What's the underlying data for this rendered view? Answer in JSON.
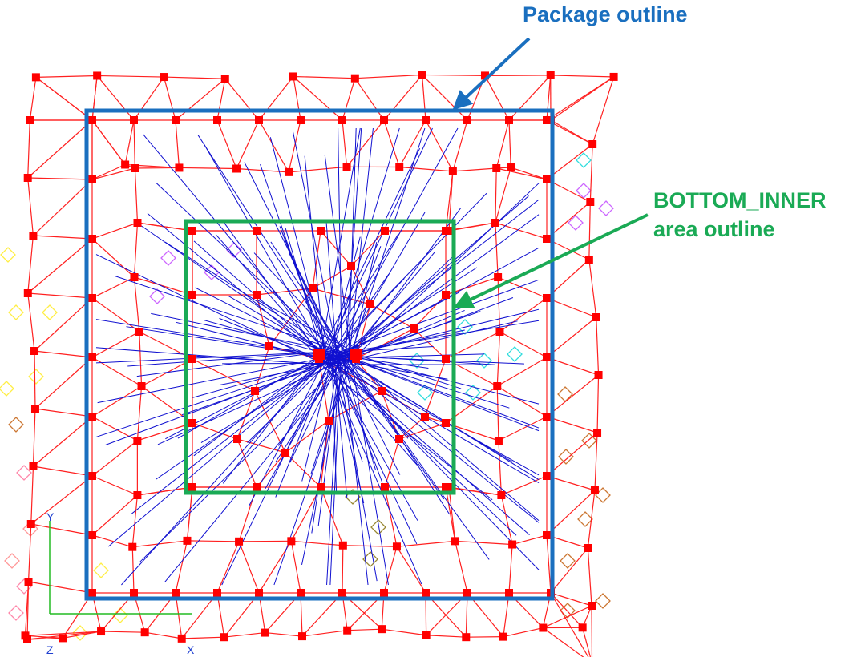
{
  "annotations": {
    "package_outline": {
      "label": "Package outline",
      "color": "#1a6fbf"
    },
    "bottom_inner_outline": {
      "label_line1": "BOTTOM_INNER",
      "label_line2": "area outline",
      "color": "#1aaa55"
    }
  },
  "mesh_view": {
    "mesh_color": "#ff2020",
    "node_color": "#ff0000",
    "ray_color": "#1010d0",
    "axis_color": "#22bb22",
    "axis_y_label": "Y",
    "axis_x_label": "X",
    "axis_z_label": "Z",
    "marker_colors": [
      "#ff88aa",
      "#ffee44",
      "#cc66ff",
      "#33dddd",
      "#cc7733",
      "#998833",
      "#ff9999"
    ]
  }
}
